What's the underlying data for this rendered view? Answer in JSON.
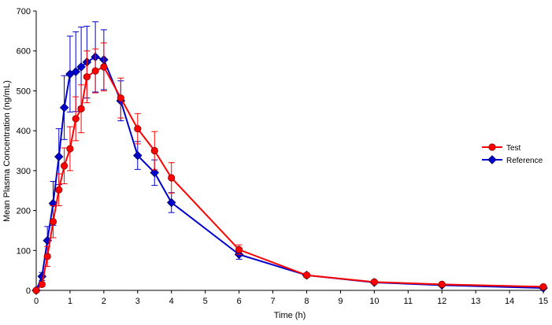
{
  "chart_data": {
    "type": "line",
    "xlabel": "Time (h)",
    "ylabel": "Mean Plasma Concentration (ng/mL)",
    "xlim": [
      0,
      15
    ],
    "ylim": [
      0,
      700
    ],
    "x_ticks": [
      0,
      1,
      2,
      3,
      4,
      5,
      6,
      7,
      8,
      9,
      10,
      11,
      12,
      13,
      14,
      15
    ],
    "y_ticks": [
      0,
      100,
      200,
      300,
      400,
      500,
      600,
      700
    ],
    "grid": false,
    "legend_position": "right",
    "series": [
      {
        "name": "Test",
        "color": "#ff0000",
        "marker": "circle",
        "x": [
          0,
          0.17,
          0.33,
          0.5,
          0.67,
          0.83,
          1,
          1.17,
          1.33,
          1.5,
          1.75,
          2,
          2.5,
          3,
          3.5,
          4,
          6,
          8,
          10,
          12,
          15
        ],
        "y": [
          0,
          15,
          85,
          172,
          252,
          312,
          355,
          430,
          455,
          535,
          550,
          560,
          482,
          405,
          350,
          282,
          102,
          38,
          21,
          15,
          9
        ],
        "error": [
          0,
          5,
          25,
          40,
          40,
          45,
          55,
          55,
          60,
          65,
          55,
          60,
          50,
          38,
          48,
          38,
          12,
          5,
          3,
          3,
          2
        ]
      },
      {
        "name": "Reference",
        "color": "#0000cc",
        "marker": "diamond",
        "x": [
          0,
          0.17,
          0.33,
          0.5,
          0.67,
          0.83,
          1,
          1.17,
          1.33,
          1.5,
          1.75,
          2,
          2.5,
          3,
          3.5,
          4,
          6,
          8,
          10,
          12,
          15
        ],
        "y": [
          0,
          35,
          125,
          218,
          335,
          458,
          542,
          548,
          560,
          572,
          585,
          578,
          475,
          338,
          295,
          220,
          90,
          38,
          20,
          13,
          6
        ],
        "error": [
          0,
          10,
          35,
          55,
          70,
          80,
          95,
          100,
          100,
          90,
          88,
          75,
          50,
          35,
          32,
          25,
          12,
          5,
          3,
          3,
          2
        ]
      }
    ]
  }
}
